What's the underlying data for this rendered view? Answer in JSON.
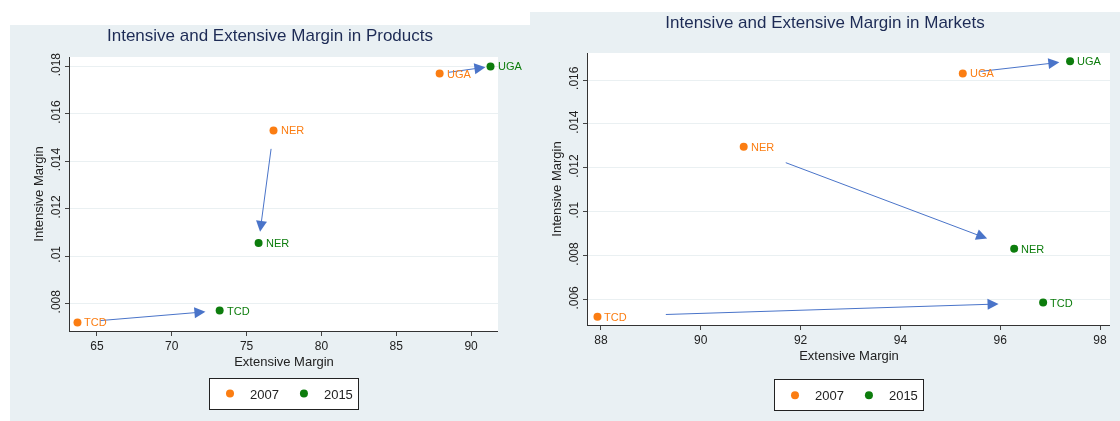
{
  "chart_data": [
    {
      "type": "scatter",
      "title": "Intensive and Extensive Margin in Products",
      "xlabel": "Extensive Margin",
      "ylabel": "Intensive Margin",
      "grid": "y",
      "legend": "bottom",
      "marker": "circle",
      "xlim": [
        63.2,
        91.8
      ],
      "ylim": [
        0.00684,
        0.0184
      ],
      "xticks": [
        65,
        70,
        75,
        80,
        85,
        90
      ],
      "yticks": [
        {
          "value": 0.008,
          "label": ".008"
        },
        {
          "value": 0.01,
          "label": ".01"
        },
        {
          "value": 0.012,
          "label": ".012"
        },
        {
          "value": 0.014,
          "label": ".014"
        },
        {
          "value": 0.016,
          "label": ".016"
        },
        {
          "value": 0.018,
          "label": ".018"
        }
      ],
      "series": [
        {
          "name": "2007",
          "color": "#fb7d12",
          "x": [
            63.7,
            76.8,
            87.9
          ],
          "values": [
            0.0072,
            0.0153,
            0.0177
          ]
        },
        {
          "name": "2015",
          "color": "#0d7d0d",
          "x": [
            73.2,
            75.8,
            91.3
          ],
          "values": [
            0.0077,
            0.01055,
            0.018
          ]
        }
      ],
      "annotations": [
        {
          "text": "TCD",
          "x": 63.7,
          "y": 0.0072
        },
        {
          "text": "NER",
          "x": 76.8,
          "y": 0.0153
        },
        {
          "text": "UGA",
          "x": 87.9,
          "y": 0.0177
        },
        {
          "text": "TCD",
          "x": 73.2,
          "y": 0.0077
        },
        {
          "text": "NER",
          "x": 75.8,
          "y": 0.01055
        },
        {
          "text": "UGA",
          "x": 91.3,
          "y": 0.018
        }
      ]
    },
    {
      "type": "scatter",
      "title": "Intensive and Extensive Margin in Markets",
      "xlabel": "Extensive Margin",
      "ylabel": "Intensive Margin",
      "grid": "y",
      "legend": "bottom",
      "marker": "circle",
      "xlim": [
        87.74,
        98.2
      ],
      "ylim": [
        0.00485,
        0.01723
      ],
      "xticks": [
        88,
        90,
        92,
        94,
        96,
        98
      ],
      "yticks": [
        {
          "value": 0.006,
          "label": ".006"
        },
        {
          "value": 0.008,
          "label": ".008"
        },
        {
          "value": 0.01,
          "label": ".01"
        },
        {
          "value": 0.012,
          "label": ".012"
        },
        {
          "value": 0.014,
          "label": ".014"
        },
        {
          "value": 0.016,
          "label": ".016"
        }
      ],
      "series": [
        {
          "name": "2007",
          "color": "#fb7d12",
          "x": [
            87.93,
            90.86,
            95.25
          ],
          "values": [
            0.00523,
            0.01296,
            0.0163
          ]
        },
        {
          "name": "2015",
          "color": "#0d7d0d",
          "x": [
            96.86,
            96.28,
            97.4
          ],
          "values": [
            0.00587,
            0.00832,
            0.01686
          ]
        }
      ],
      "annotations": [
        {
          "text": "TCD",
          "x": 87.93,
          "y": 0.00523
        },
        {
          "text": "NER",
          "x": 90.86,
          "y": 0.01296
        },
        {
          "text": "UGA",
          "x": 95.25,
          "y": 0.0163
        },
        {
          "text": "TCD",
          "x": 96.86,
          "y": 0.00587
        },
        {
          "text": "NER",
          "x": 96.28,
          "y": 0.00832
        },
        {
          "text": "UGA",
          "x": 97.4,
          "y": 0.01686
        }
      ]
    }
  ]
}
